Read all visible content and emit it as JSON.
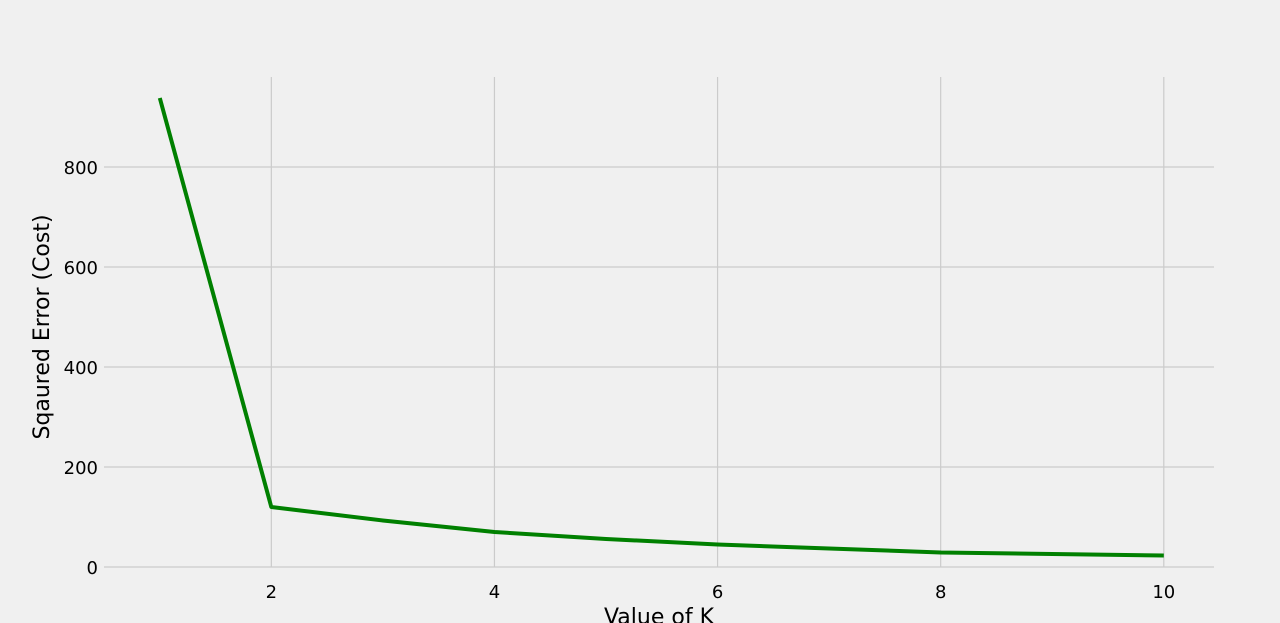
{
  "chart_data": {
    "type": "line",
    "title": "",
    "xlabel": "Value of K",
    "ylabel": "Sqaured Error (Cost)",
    "xlim": [
      0.5,
      10.45
    ],
    "ylim": [
      0,
      980
    ],
    "xticks": [
      2,
      4,
      6,
      8,
      10
    ],
    "yticks": [
      0,
      200,
      400,
      600,
      800
    ],
    "grid": true,
    "series": [
      {
        "color": "#008000",
        "x": [
          1,
          2,
          3,
          4,
          5,
          6,
          7,
          8,
          9,
          10
        ],
        "y": [
          938,
          120,
          93,
          70,
          56,
          45,
          37,
          29,
          26,
          23
        ]
      }
    ]
  }
}
